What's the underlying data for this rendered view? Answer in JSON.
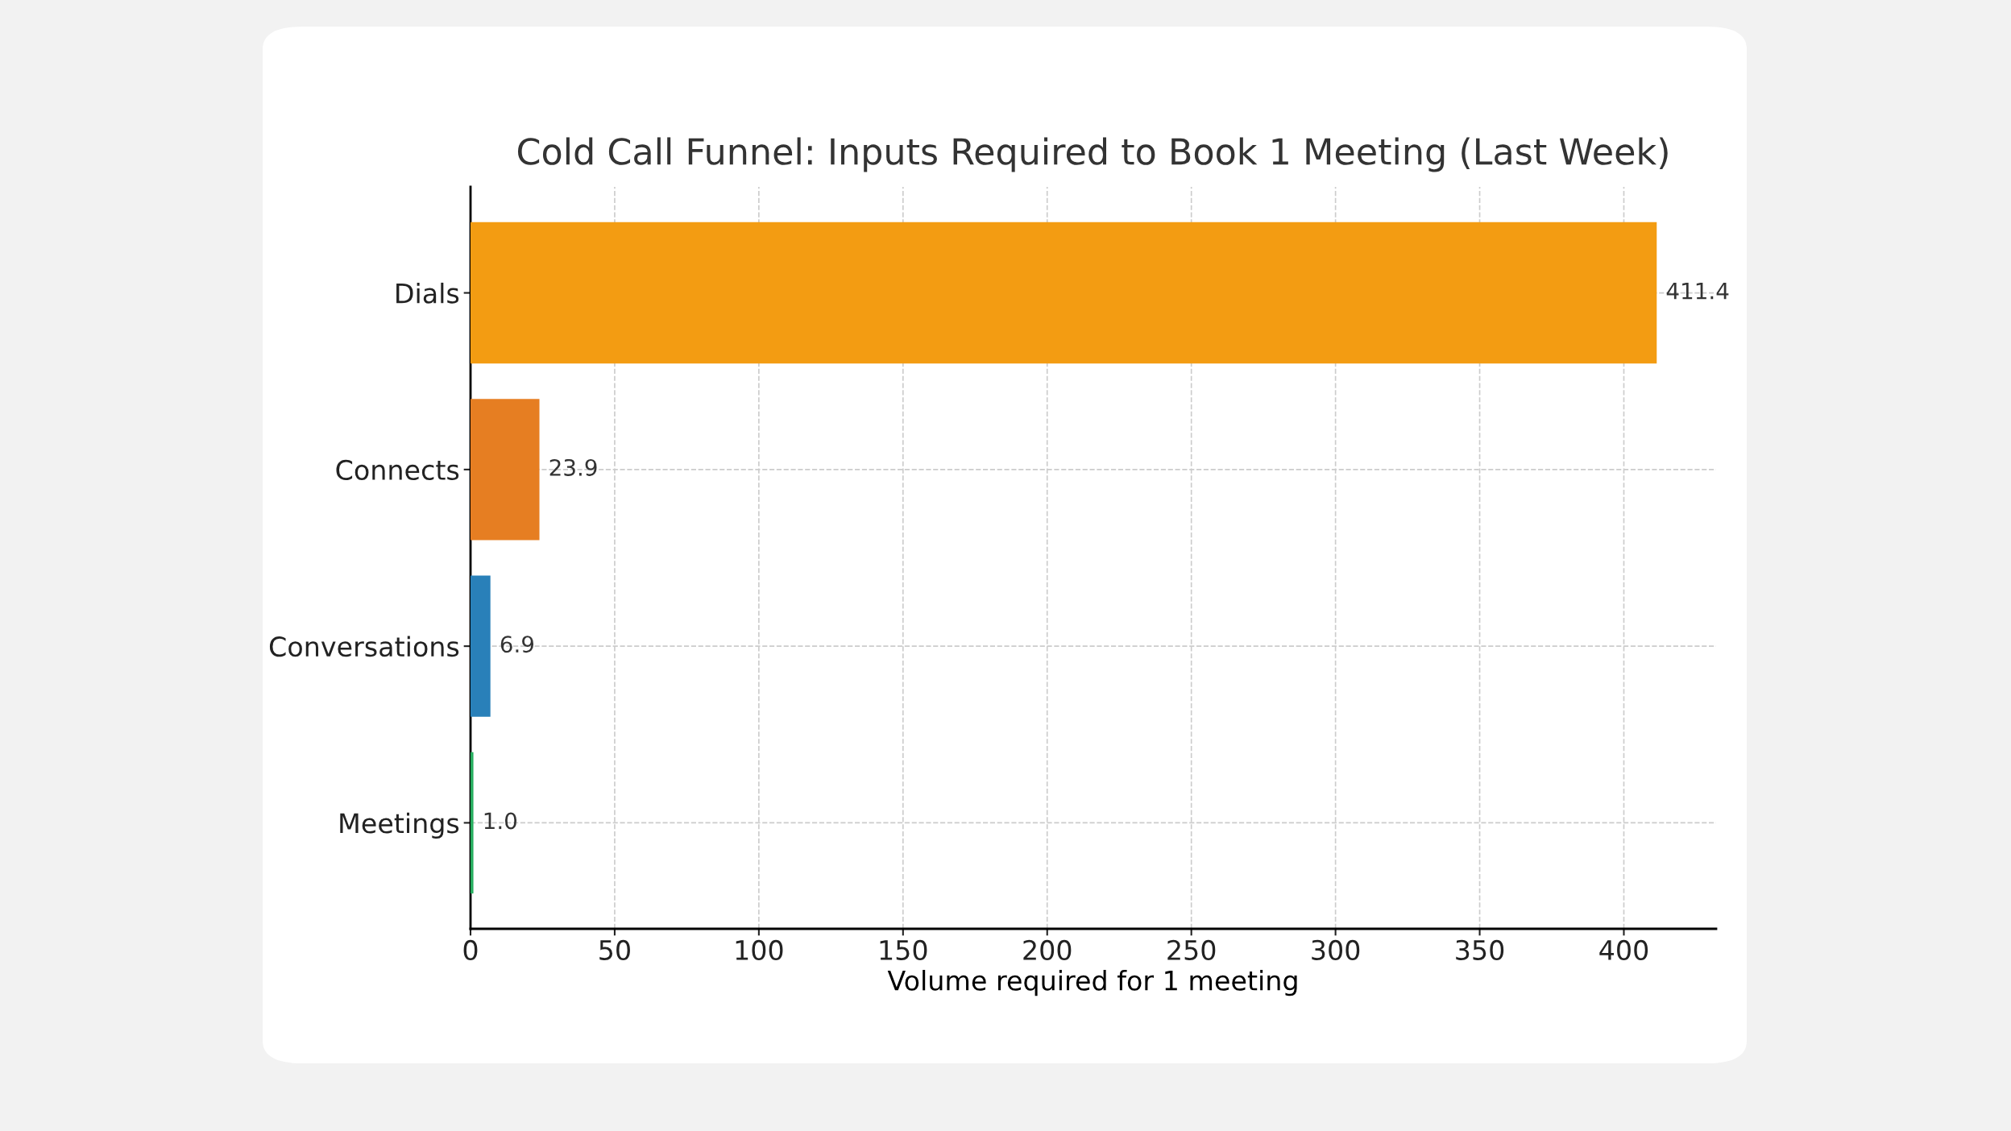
{
  "chart_data": {
    "type": "bar",
    "orientation": "horizontal",
    "title": "Cold Call Funnel: Inputs Required to Book 1 Meeting (Last Week)",
    "xlabel": "Volume required for 1 meeting",
    "categories": [
      "Dials",
      "Connects",
      "Conversations",
      "Meetings"
    ],
    "values": [
      411.4,
      23.9,
      6.9,
      1.0
    ],
    "colors": [
      "#f39c12",
      "#e67e22",
      "#2980b9",
      "#27ae60"
    ],
    "value_labels": [
      "411.4",
      "23.9",
      "6.9",
      "1.0"
    ],
    "xlim": [
      0,
      432
    ],
    "xticks": [
      0,
      50,
      100,
      150,
      200,
      250,
      300,
      350,
      400
    ],
    "grid": true,
    "line_style": "dashed"
  }
}
